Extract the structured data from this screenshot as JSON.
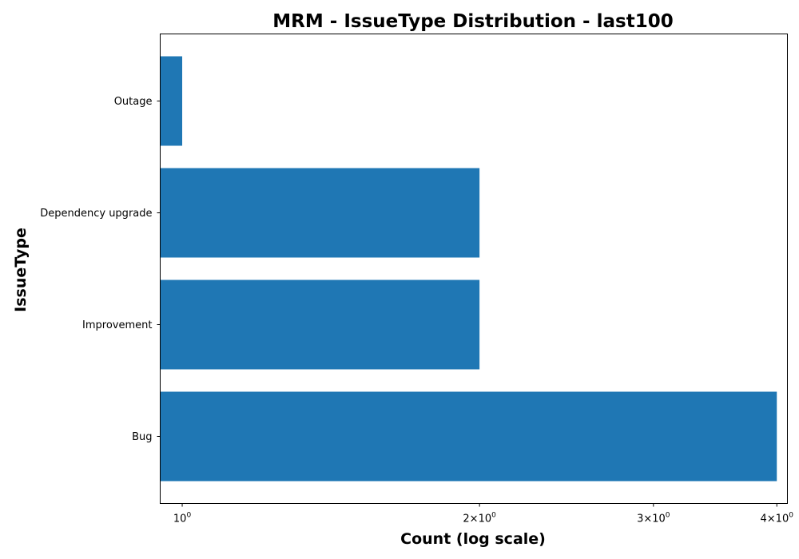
{
  "chart_data": {
    "type": "bar",
    "orientation": "horizontal",
    "title": "MRM - IssueType Distribution - last100",
    "xlabel": "Count (log scale)",
    "ylabel": "IssueType",
    "x_scale": "log",
    "xlim": [
      0.95,
      4.1
    ],
    "categories": [
      "Bug",
      "Improvement",
      "Dependency upgrade",
      "Outage"
    ],
    "values": [
      4,
      2,
      2,
      1
    ],
    "x_ticks": [
      {
        "value": 1,
        "mantissa": "",
        "base": "10",
        "exp": "0"
      },
      {
        "value": 2,
        "mantissa": "2×",
        "base": "10",
        "exp": "0"
      },
      {
        "value": 3,
        "mantissa": "3×",
        "base": "10",
        "exp": "0"
      },
      {
        "value": 4,
        "mantissa": "4×",
        "base": "10",
        "exp": "0"
      }
    ],
    "bar_color": "#1f77b4",
    "grid": false,
    "legend": "none"
  }
}
